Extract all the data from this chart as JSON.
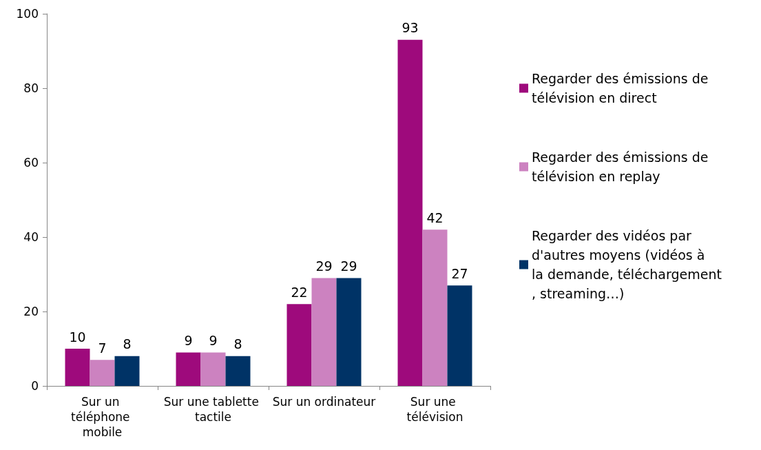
{
  "chart_data": {
    "type": "bar",
    "categories": [
      "Sur un téléphone mobile",
      "Sur une tablette tactile",
      "Sur un ordinateur",
      "Sur une télévision"
    ],
    "series": [
      {
        "name": "Regarder des émissions de télévision en direct",
        "color": "#9e0a7c",
        "values": [
          10,
          9,
          22,
          93
        ]
      },
      {
        "name": "Regarder des émissions de télévision en replay",
        "color": "#cc82c0",
        "values": [
          7,
          9,
          29,
          42
        ]
      },
      {
        "name": "Regarder des vidéos par d'autres moyens (vidéos à la demande, téléchargement, streaming…)",
        "color": "#003366",
        "values": [
          8,
          8,
          29,
          27
        ]
      }
    ],
    "ylim": [
      0,
      100
    ],
    "yticks": [
      0,
      20,
      40,
      60,
      80,
      100
    ],
    "data_labels": true,
    "legend": "right",
    "grid": false
  }
}
